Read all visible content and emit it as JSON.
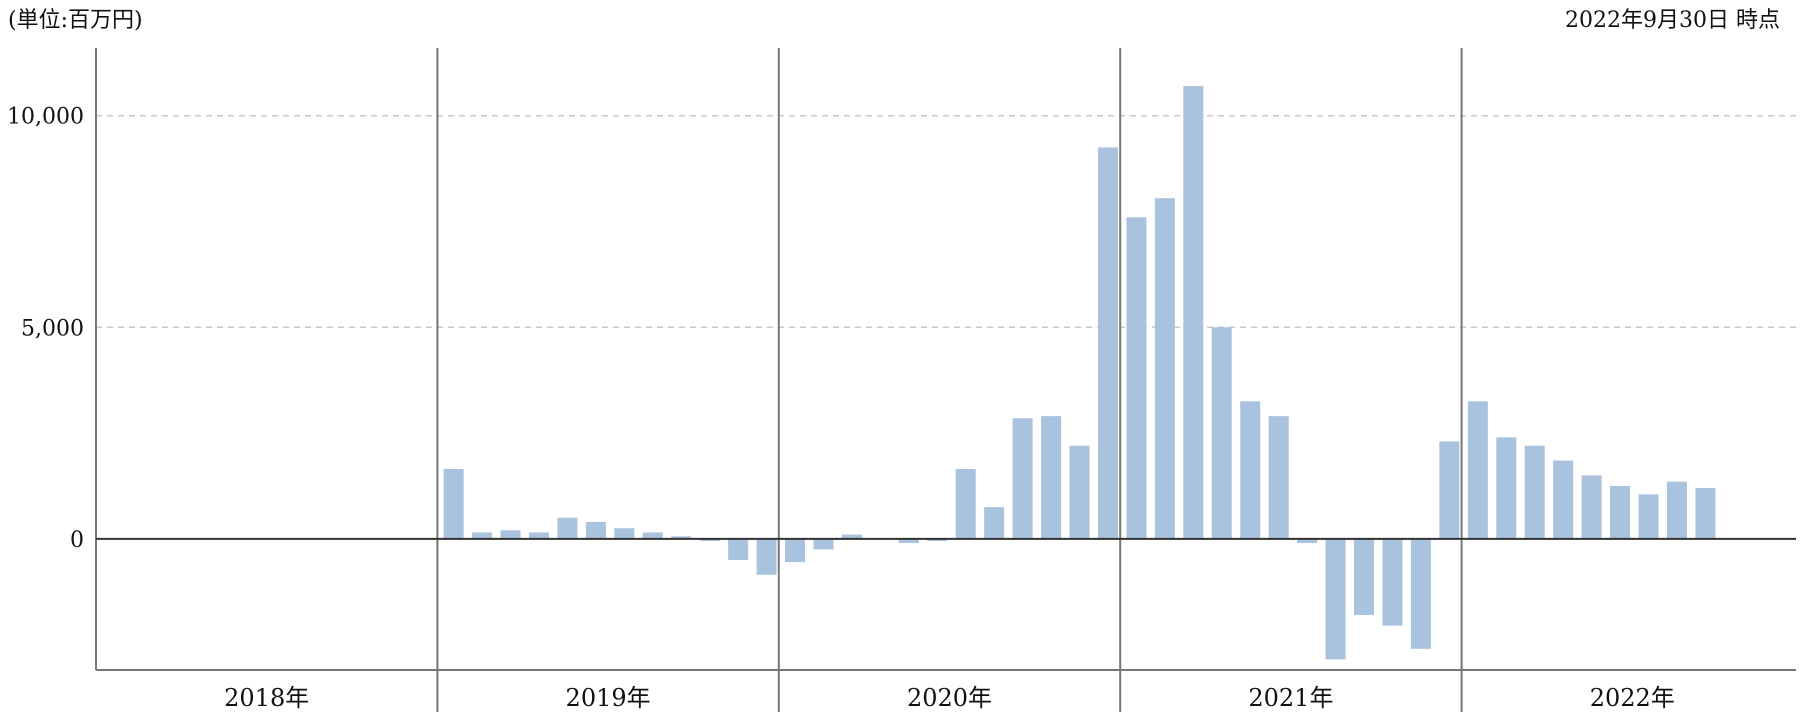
{
  "header": {
    "unit": "(単位:百万円)",
    "as_of": "2022年9月30日 時点"
  },
  "colors": {
    "bar": "#a9c2de",
    "axis": "#333333",
    "divider": "#777777",
    "grid": "#c8c8c8"
  },
  "chart_data": {
    "type": "bar",
    "title": "",
    "xlabel": "",
    "ylabel": "",
    "ylim": [
      -3100,
      11600
    ],
    "yticks": [
      {
        "value": 0,
        "label": "0"
      },
      {
        "value": 5000,
        "label": "5,000"
      },
      {
        "value": 10000,
        "label": "10,000"
      }
    ],
    "grid": "horizontal dashed",
    "legend": "none",
    "years": [
      {
        "label": "2018年",
        "values": []
      },
      {
        "label": "2019年",
        "values": [
          1650,
          150,
          200,
          150,
          500,
          400,
          250,
          150,
          60,
          -50,
          -500,
          -850
        ]
      },
      {
        "label": "2020年",
        "values": [
          -550,
          -250,
          100,
          0,
          -100,
          -50,
          1650,
          750,
          2850,
          2900,
          2200,
          9250
        ]
      },
      {
        "label": "2021年",
        "values": [
          7600,
          8050,
          10700,
          5000,
          3250,
          2900,
          -100,
          -2850,
          -1800,
          -2050,
          -2600,
          2300
        ]
      },
      {
        "label": "2022年",
        "values": [
          3250,
          2400,
          2200,
          1850,
          1500,
          1250,
          1050,
          1350,
          1200
        ]
      }
    ]
  }
}
